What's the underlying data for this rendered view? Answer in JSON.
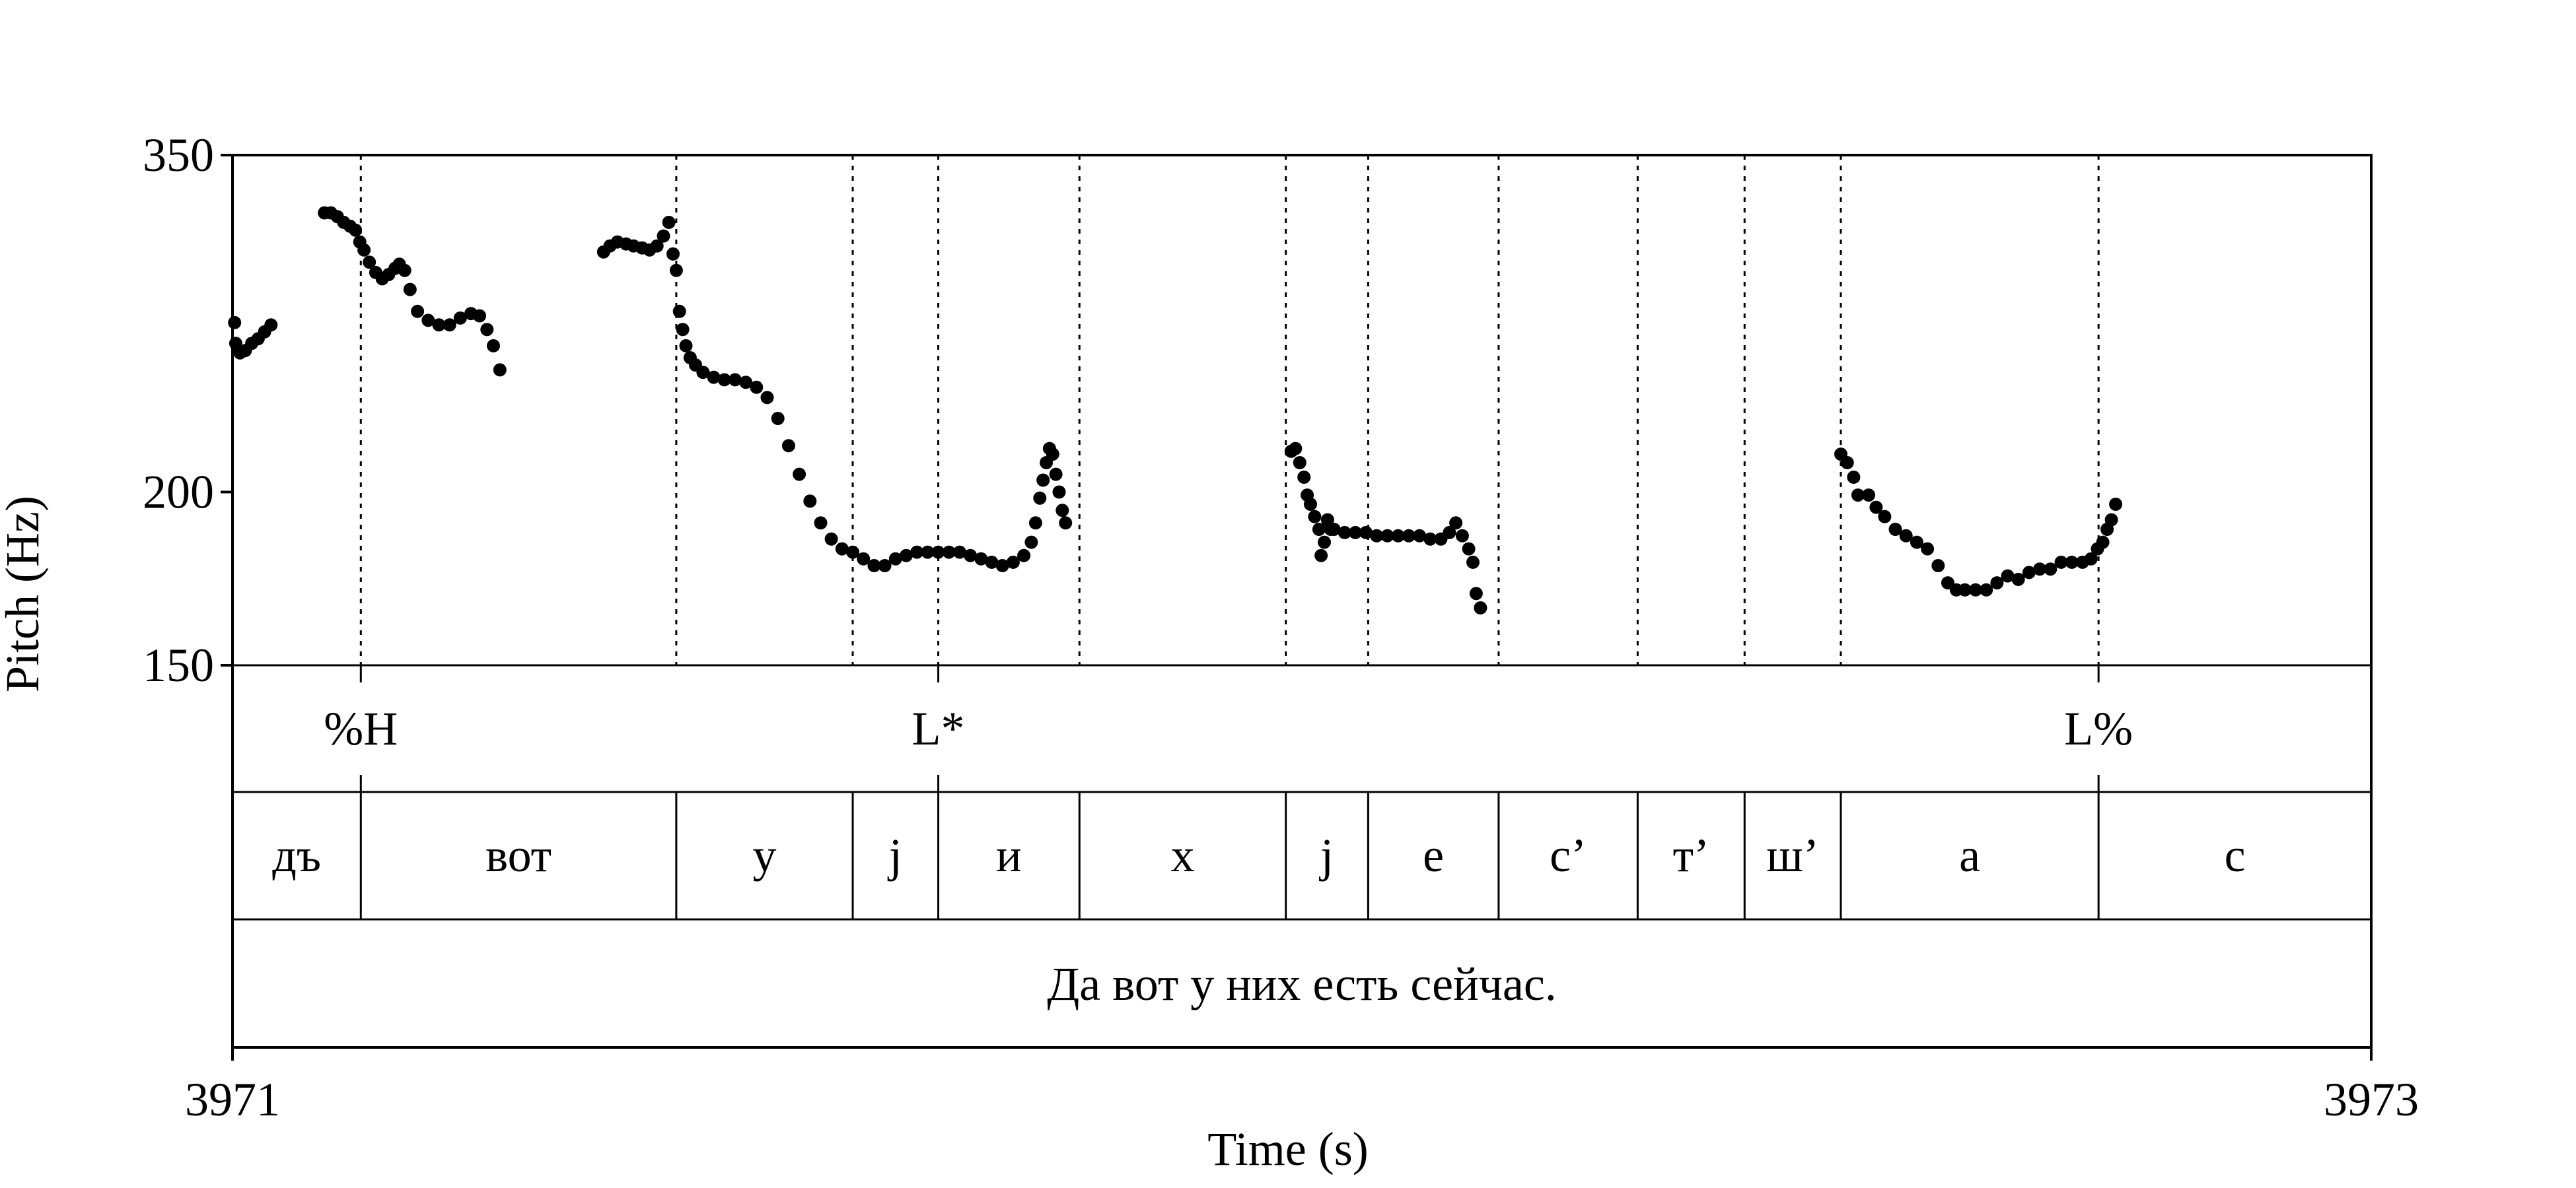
{
  "chart_data": {
    "type": "scatter",
    "title": "",
    "ylabel": "Pitch (Hz)",
    "xlabel": "Time (s)",
    "xlim": [
      3971,
      3973
    ],
    "ylim": [
      150,
      350
    ],
    "y_scale": "log",
    "yticks": [
      {
        "value": 150,
        "label": "150"
      },
      {
        "value": 200,
        "label": "200"
      },
      {
        "value": 350,
        "label": "350"
      }
    ],
    "xticks": [
      {
        "value": 3971,
        "label": "3971"
      },
      {
        "value": 3973,
        "label": "3973"
      }
    ],
    "series": [
      {
        "points": [
          [
            3971.002,
            265
          ],
          [
            3971.003,
            256
          ],
          [
            3971.007,
            252
          ],
          [
            3971.012,
            253
          ],
          [
            3971.018,
            256
          ],
          [
            3971.024,
            258
          ],
          [
            3971.03,
            261
          ],
          [
            3971.036,
            264
          ],
          [
            3971.086,
            318
          ],
          [
            3971.092,
            318
          ],
          [
            3971.098,
            316
          ],
          [
            3971.104,
            313
          ],
          [
            3971.11,
            311
          ],
          [
            3971.115,
            309
          ],
          [
            3971.119,
            303
          ],
          [
            3971.123,
            299
          ],
          [
            3971.128,
            293
          ],
          [
            3971.134,
            288
          ],
          [
            3971.14,
            285
          ],
          [
            3971.146,
            287
          ],
          [
            3971.152,
            290
          ],
          [
            3971.156,
            292
          ],
          [
            3971.161,
            289
          ],
          [
            3971.166,
            280
          ],
          [
            3971.173,
            270
          ],
          [
            3971.183,
            266
          ],
          [
            3971.193,
            264
          ],
          [
            3971.203,
            264
          ],
          [
            3971.213,
            267
          ],
          [
            3971.223,
            269
          ],
          [
            3971.231,
            268
          ],
          [
            3971.238,
            262
          ],
          [
            3971.244,
            255
          ],
          [
            3971.25,
            245
          ],
          [
            3971.347,
            298
          ],
          [
            3971.353,
            301
          ],
          [
            3971.36,
            303
          ],
          [
            3971.368,
            302
          ],
          [
            3971.375,
            301
          ],
          [
            3971.383,
            300
          ],
          [
            3971.39,
            299
          ],
          [
            3971.397,
            301
          ],
          [
            3971.403,
            306
          ],
          [
            3971.408,
            313
          ],
          [
            3971.412,
            297
          ],
          [
            3971.415,
            289
          ],
          [
            3971.418,
            270
          ],
          [
            3971.421,
            262
          ],
          [
            3971.424,
            255
          ],
          [
            3971.428,
            250
          ],
          [
            3971.433,
            247
          ],
          [
            3971.44,
            244
          ],
          [
            3971.45,
            242
          ],
          [
            3971.46,
            241
          ],
          [
            3971.47,
            241
          ],
          [
            3971.48,
            240
          ],
          [
            3971.49,
            238
          ],
          [
            3971.5,
            234
          ],
          [
            3971.51,
            226
          ],
          [
            3971.52,
            216
          ],
          [
            3971.53,
            206
          ],
          [
            3971.54,
            197
          ],
          [
            3971.55,
            190
          ],
          [
            3971.56,
            185
          ],
          [
            3971.57,
            182
          ],
          [
            3971.58,
            181
          ],
          [
            3971.59,
            179
          ],
          [
            3971.6,
            177
          ],
          [
            3971.61,
            177
          ],
          [
            3971.62,
            179
          ],
          [
            3971.63,
            180
          ],
          [
            3971.64,
            181
          ],
          [
            3971.65,
            181
          ],
          [
            3971.66,
            181
          ],
          [
            3971.67,
            181
          ],
          [
            3971.68,
            181
          ],
          [
            3971.69,
            180
          ],
          [
            3971.7,
            179
          ],
          [
            3971.71,
            178
          ],
          [
            3971.72,
            177
          ],
          [
            3971.73,
            178
          ],
          [
            3971.74,
            180
          ],
          [
            3971.747,
            184
          ],
          [
            3971.751,
            190
          ],
          [
            3971.755,
            198
          ],
          [
            3971.758,
            204
          ],
          [
            3971.761,
            210
          ],
          [
            3971.764,
            215
          ],
          [
            3971.767,
            213
          ],
          [
            3971.77,
            206
          ],
          [
            3971.773,
            200
          ],
          [
            3971.776,
            194
          ],
          [
            3971.779,
            190
          ],
          [
            3971.99,
            214
          ],
          [
            3971.994,
            215
          ],
          [
            3971.998,
            210
          ],
          [
            3972.002,
            205
          ],
          [
            3972.005,
            199
          ],
          [
            3972.008,
            196
          ],
          [
            3972.012,
            192
          ],
          [
            3972.016,
            188
          ],
          [
            3972.018,
            180
          ],
          [
            3972.021,
            184
          ],
          [
            3972.024,
            191
          ],
          [
            3972.027,
            188
          ],
          [
            3972.03,
            188
          ],
          [
            3972.04,
            187
          ],
          [
            3972.05,
            187
          ],
          [
            3972.06,
            187
          ],
          [
            3972.07,
            186
          ],
          [
            3972.08,
            186
          ],
          [
            3972.09,
            186
          ],
          [
            3972.1,
            186
          ],
          [
            3972.11,
            186
          ],
          [
            3972.12,
            185
          ],
          [
            3972.13,
            185
          ],
          [
            3972.138,
            187
          ],
          [
            3972.144,
            190
          ],
          [
            3972.15,
            186
          ],
          [
            3972.156,
            182
          ],
          [
            3972.16,
            178
          ],
          [
            3972.163,
            169
          ],
          [
            3972.167,
            165
          ],
          [
            3972.504,
            213
          ],
          [
            3972.51,
            210
          ],
          [
            3972.516,
            205
          ],
          [
            3972.52,
            199
          ],
          [
            3972.53,
            199
          ],
          [
            3972.537,
            195
          ],
          [
            3972.545,
            192
          ],
          [
            3972.555,
            188
          ],
          [
            3972.565,
            186
          ],
          [
            3972.575,
            184
          ],
          [
            3972.585,
            182
          ],
          [
            3972.595,
            177
          ],
          [
            3972.604,
            172
          ],
          [
            3972.612,
            170
          ],
          [
            3972.62,
            170
          ],
          [
            3972.63,
            170
          ],
          [
            3972.64,
            170
          ],
          [
            3972.65,
            172
          ],
          [
            3972.66,
            174
          ],
          [
            3972.67,
            173
          ],
          [
            3972.68,
            175
          ],
          [
            3972.69,
            176
          ],
          [
            3972.7,
            176
          ],
          [
            3972.71,
            178
          ],
          [
            3972.72,
            178
          ],
          [
            3972.73,
            178
          ],
          [
            3972.738,
            179
          ],
          [
            3972.744,
            182
          ],
          [
            3972.749,
            184
          ],
          [
            3972.753,
            188
          ],
          [
            3972.757,
            191
          ],
          [
            3972.761,
            196
          ]
        ]
      }
    ]
  },
  "tiers": [
    {
      "name": "tones",
      "points": [
        {
          "time": 3971.12,
          "label": "%H"
        },
        {
          "time": 3971.66,
          "label": "L*"
        },
        {
          "time": 3972.745,
          "label": "L%"
        }
      ]
    },
    {
      "name": "segments",
      "boundaries": [
        3971,
        3971.12,
        3971.415,
        3971.58,
        3971.66,
        3971.792,
        3971.985,
        3972.062,
        3972.184,
        3972.314,
        3972.414,
        3972.504,
        3972.745,
        3973
      ],
      "labels": [
        "дъ",
        "вот",
        "у",
        "j",
        "и",
        "х",
        "j",
        "е",
        "с’",
        "т’",
        "ш’",
        "а",
        "с"
      ]
    },
    {
      "name": "sentence",
      "intervals": [
        {
          "start": 3971,
          "end": 3973,
          "label": "Да вот у них есть сейчас."
        }
      ]
    }
  ]
}
